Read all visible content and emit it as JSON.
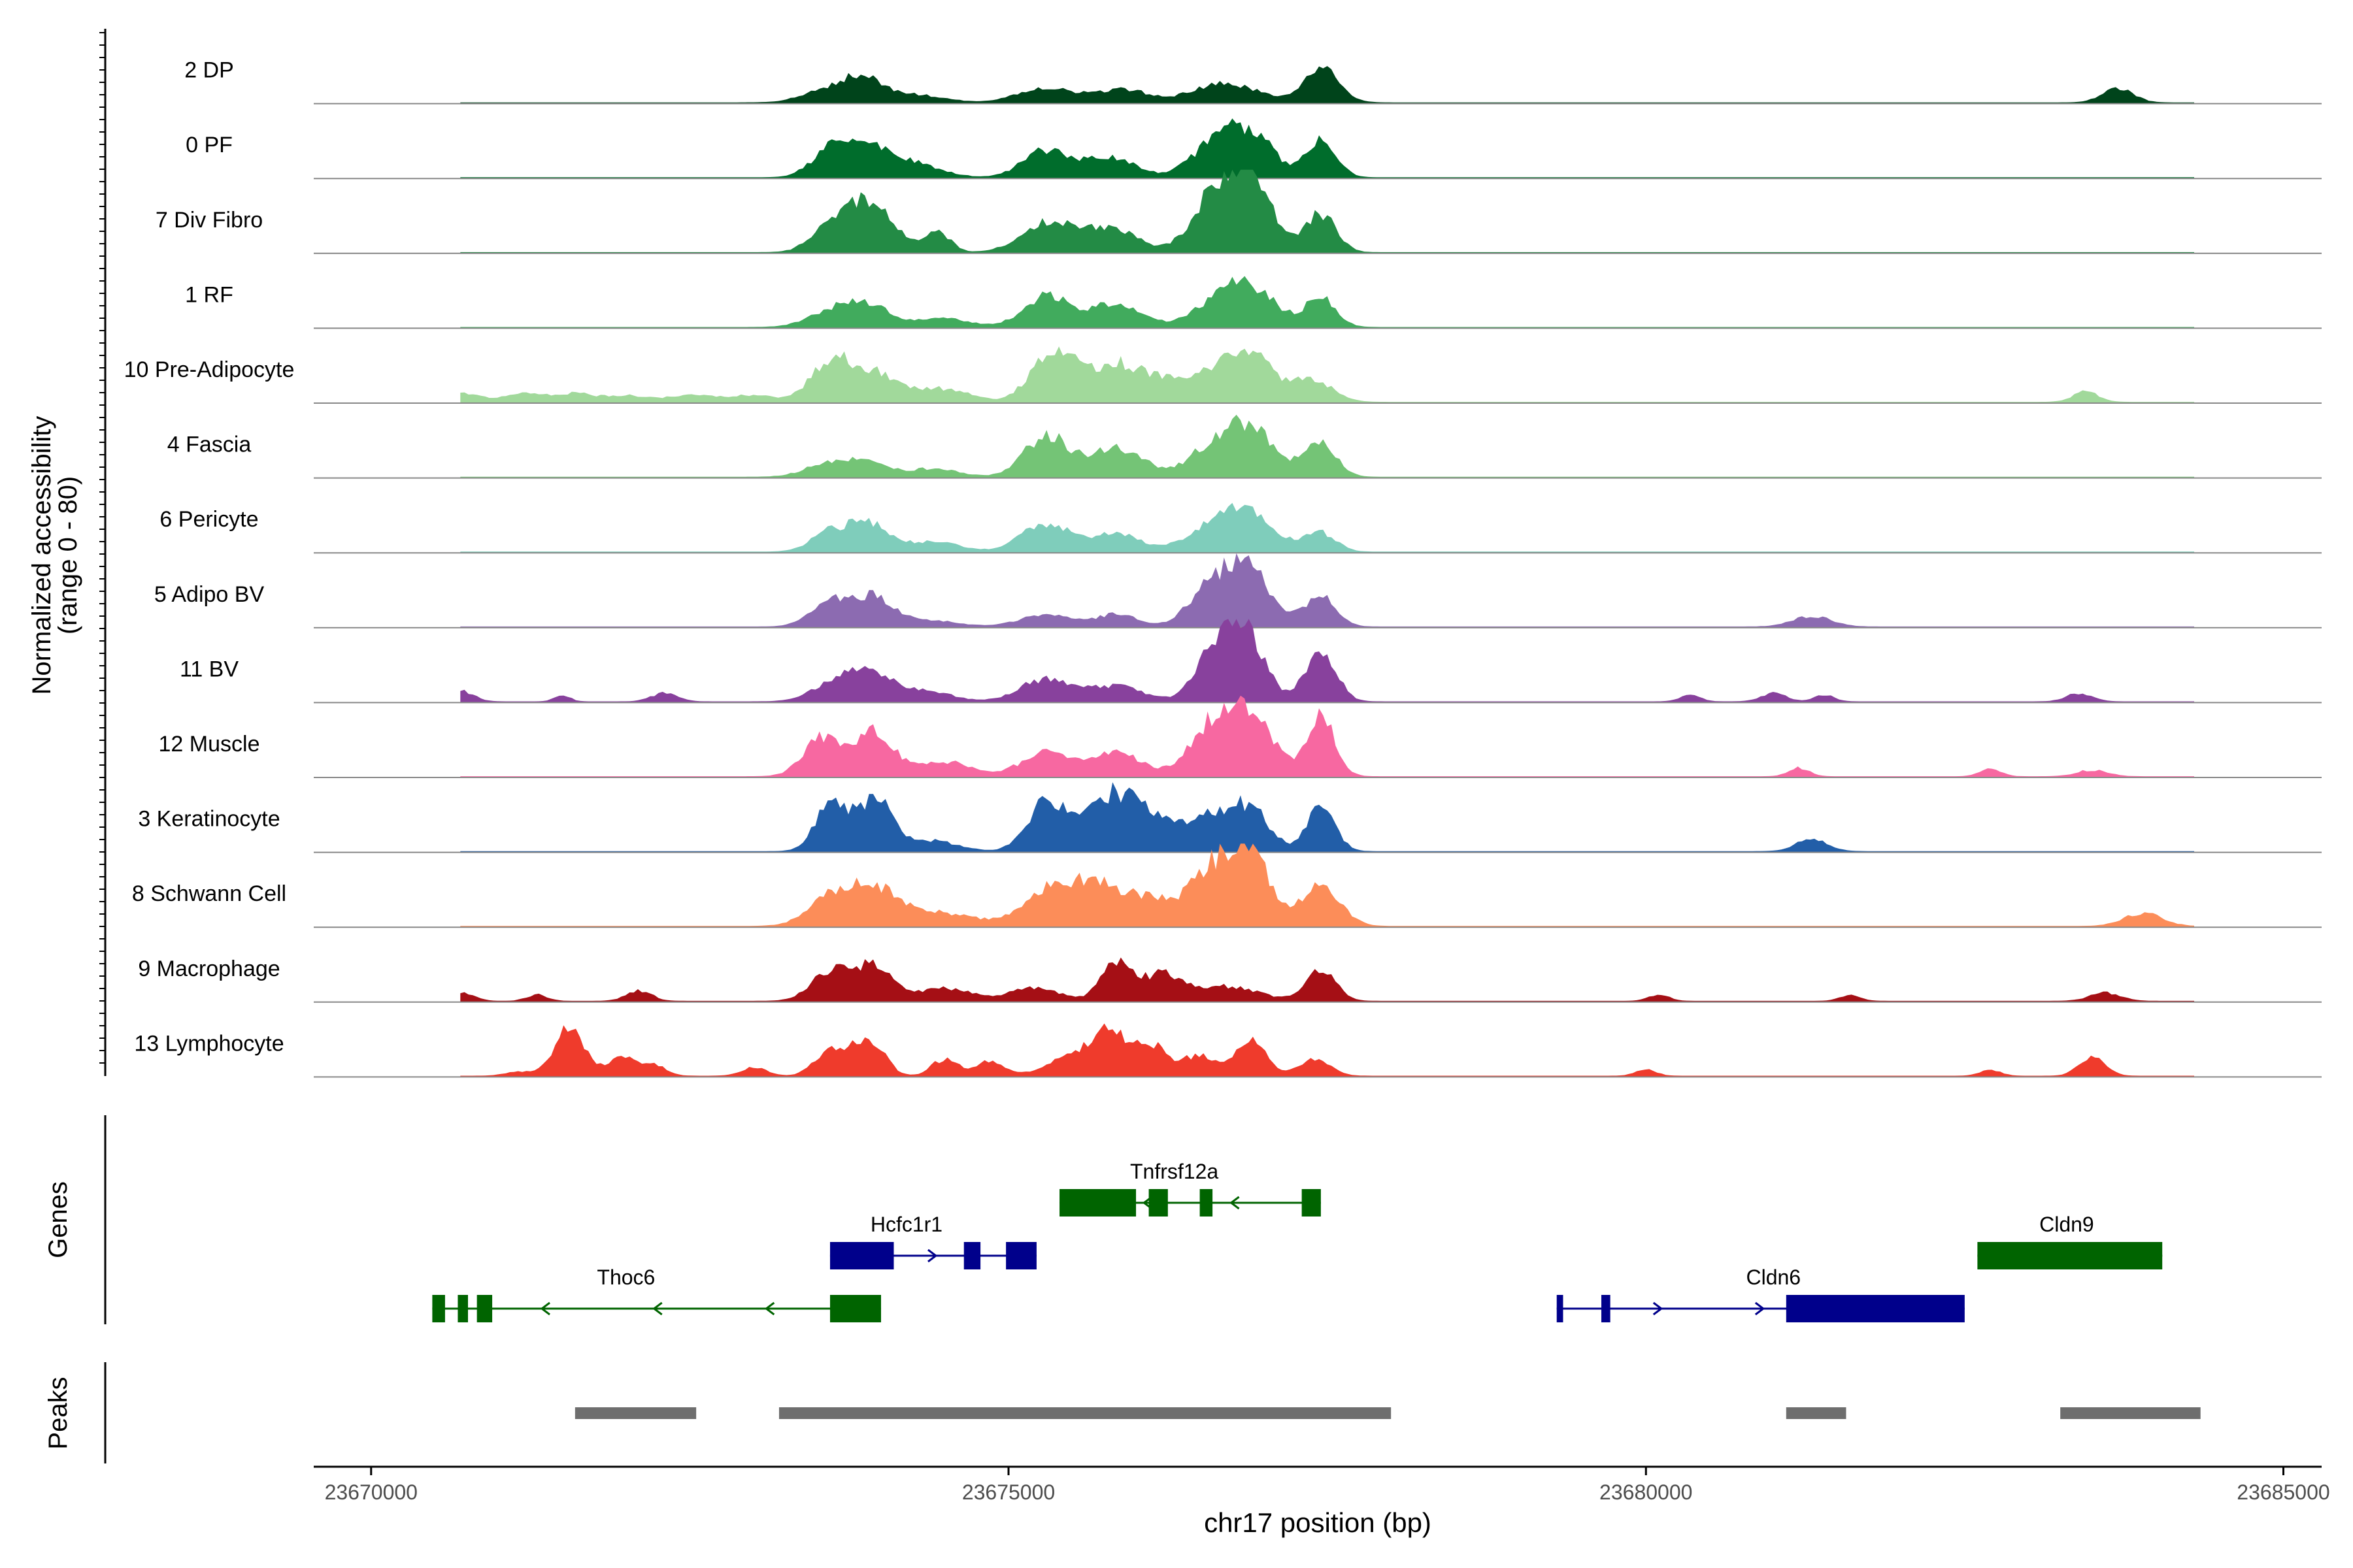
{
  "chart_data": {
    "type": "area",
    "chromosome": "chr17",
    "xlabel": "chr17 position (bp)",
    "ylabel_line1": "Normalized accessibility",
    "ylabel_line2": "(range 0 - 80)",
    "ylim": [
      0,
      80
    ],
    "xlim": [
      23669550,
      23685300
    ],
    "x_ticks": [
      23670000,
      23675000,
      23680000,
      23685000
    ],
    "x_tick_labels": [
      "23670000",
      "23675000",
      "23680000",
      "23685000"
    ],
    "track_x_range": [
      23670700,
      23684300
    ],
    "series": [
      {
        "name": "2 DP",
        "color": "#00441b",
        "peaks": [
          [
            23673600,
            12,
            200
          ],
          [
            23673850,
            18,
            150
          ],
          [
            23674200,
            8,
            250
          ],
          [
            23675300,
            14,
            220
          ],
          [
            23675900,
            12,
            200
          ],
          [
            23676700,
            18,
            250
          ],
          [
            23677450,
            32,
            140
          ],
          [
            23683700,
            14,
            120
          ]
        ]
      },
      {
        "name": "0 PF",
        "color": "#006d2c",
        "peaks": [
          [
            23673600,
            22,
            150
          ],
          [
            23673900,
            28,
            200
          ],
          [
            23674300,
            10,
            200
          ],
          [
            23675300,
            26,
            180
          ],
          [
            23675800,
            18,
            200
          ],
          [
            23676600,
            28,
            180
          ],
          [
            23676900,
            40,
            180
          ],
          [
            23677450,
            36,
            120
          ]
        ]
      },
      {
        "name": "7 Div Fibro",
        "color": "#238b45",
        "peaks": [
          [
            23673600,
            20,
            150
          ],
          [
            23673900,
            45,
            200
          ],
          [
            23674450,
            18,
            100
          ],
          [
            23675300,
            28,
            200
          ],
          [
            23675800,
            24,
            200
          ],
          [
            23676600,
            50,
            170
          ],
          [
            23676900,
            70,
            170
          ],
          [
            23677450,
            36,
            120
          ]
        ]
      },
      {
        "name": "1 RF",
        "color": "#41ab5d",
        "peaks": [
          [
            23673600,
            14,
            180
          ],
          [
            23673900,
            20,
            180
          ],
          [
            23674500,
            8,
            200
          ],
          [
            23675300,
            30,
            180
          ],
          [
            23675850,
            24,
            180
          ],
          [
            23676600,
            18,
            200
          ],
          [
            23676900,
            36,
            200
          ],
          [
            23677450,
            28,
            120
          ]
        ]
      },
      {
        "name": "10 Pre-Adipocyte",
        "color": "#a1d99b",
        "peaks": [
          [
            23670700,
            8,
            150
          ],
          [
            23671200,
            8,
            150
          ],
          [
            23671600,
            8,
            150
          ],
          [
            23672000,
            6,
            150
          ],
          [
            23672500,
            6,
            200
          ],
          [
            23673000,
            6,
            200
          ],
          [
            23673600,
            36,
            150
          ],
          [
            23673950,
            28,
            200
          ],
          [
            23674500,
            12,
            200
          ],
          [
            23675350,
            50,
            170
          ],
          [
            23675850,
            36,
            200
          ],
          [
            23676200,
            14,
            150
          ],
          [
            23676600,
            22,
            200
          ],
          [
            23676900,
            40,
            200
          ],
          [
            23677400,
            20,
            150
          ],
          [
            23683450,
            10,
            100
          ]
        ]
      },
      {
        "name": "4 Fascia",
        "color": "#74c476",
        "peaks": [
          [
            23673600,
            14,
            180
          ],
          [
            23673900,
            12,
            150
          ],
          [
            23674400,
            8,
            200
          ],
          [
            23675300,
            40,
            170
          ],
          [
            23675850,
            28,
            200
          ],
          [
            23676600,
            24,
            200
          ],
          [
            23676900,
            42,
            200
          ],
          [
            23677450,
            34,
            120
          ]
        ]
      },
      {
        "name": "6 Pericyte",
        "color": "#7fcdbb",
        "peaks": [
          [
            23673600,
            18,
            150
          ],
          [
            23673900,
            26,
            150
          ],
          [
            23674400,
            10,
            200
          ],
          [
            23675300,
            26,
            200
          ],
          [
            23675850,
            16,
            200
          ],
          [
            23676600,
            22,
            200
          ],
          [
            23676900,
            34,
            200
          ],
          [
            23677450,
            18,
            120
          ]
        ]
      },
      {
        "name": "5 Adipo BV",
        "color": "#8c6bb1",
        "peaks": [
          [
            23673600,
            24,
            150
          ],
          [
            23673950,
            28,
            150
          ],
          [
            23674400,
            6,
            200
          ],
          [
            23675300,
            12,
            200
          ],
          [
            23675850,
            12,
            150
          ],
          [
            23676600,
            36,
            180
          ],
          [
            23676900,
            48,
            180
          ],
          [
            23677450,
            28,
            120
          ],
          [
            23681300,
            10,
            150
          ]
        ]
      },
      {
        "name": "11 BV",
        "color": "#88419d",
        "peaks": [
          [
            23670700,
            10,
            100
          ],
          [
            23671500,
            6,
            60
          ],
          [
            23672300,
            8,
            100
          ],
          [
            23673650,
            20,
            180
          ],
          [
            23673950,
            24,
            150
          ],
          [
            23674350,
            10,
            200
          ],
          [
            23675300,
            22,
            200
          ],
          [
            23675850,
            14,
            200
          ],
          [
            23676600,
            40,
            150
          ],
          [
            23676850,
            68,
            150
          ],
          [
            23677450,
            48,
            120
          ],
          [
            23680350,
            6,
            80
          ],
          [
            23681000,
            8,
            100
          ],
          [
            23681400,
            6,
            80
          ],
          [
            23683400,
            8,
            100
          ]
        ]
      },
      {
        "name": "12 Muscle",
        "color": "#f768a1",
        "peaks": [
          [
            23673550,
            38,
            150
          ],
          [
            23673950,
            42,
            150
          ],
          [
            23674500,
            14,
            200
          ],
          [
            23675300,
            22,
            200
          ],
          [
            23675850,
            22,
            200
          ],
          [
            23676600,
            44,
            180
          ],
          [
            23676900,
            56,
            180
          ],
          [
            23677450,
            58,
            110
          ],
          [
            23681200,
            8,
            80
          ],
          [
            23682700,
            8,
            80
          ],
          [
            23683500,
            6,
            120
          ]
        ]
      },
      {
        "name": "3 Keratinocyte",
        "color": "#225ea8",
        "peaks": [
          [
            23673600,
            46,
            120
          ],
          [
            23673950,
            50,
            140
          ],
          [
            23674400,
            10,
            200
          ],
          [
            23675300,
            48,
            150
          ],
          [
            23675800,
            52,
            200
          ],
          [
            23676150,
            24,
            180
          ],
          [
            23676600,
            32,
            180
          ],
          [
            23676900,
            36,
            150
          ],
          [
            23677450,
            42,
            110
          ],
          [
            23681300,
            12,
            120
          ]
        ]
      },
      {
        "name": "8 Schwann Cell",
        "color": "#fc8d59",
        "peaks": [
          [
            23673600,
            24,
            180
          ],
          [
            23673950,
            36,
            200
          ],
          [
            23674500,
            12,
            250
          ],
          [
            23675300,
            32,
            200
          ],
          [
            23675700,
            38,
            200
          ],
          [
            23676150,
            24,
            200
          ],
          [
            23676600,
            50,
            170
          ],
          [
            23676900,
            64,
            160
          ],
          [
            23677450,
            40,
            150
          ],
          [
            23683900,
            12,
            150
          ]
        ]
      },
      {
        "name": "9 Macrophage",
        "color": "#a50f15",
        "peaks": [
          [
            23670700,
            8,
            100
          ],
          [
            23671300,
            6,
            80
          ],
          [
            23672100,
            10,
            100
          ],
          [
            23673600,
            28,
            150
          ],
          [
            23673950,
            34,
            150
          ],
          [
            23674500,
            12,
            200
          ],
          [
            23675200,
            12,
            200
          ],
          [
            23675850,
            36,
            120
          ],
          [
            23676200,
            24,
            150
          ],
          [
            23676700,
            14,
            250
          ],
          [
            23677450,
            30,
            120
          ],
          [
            23680100,
            6,
            80
          ],
          [
            23681600,
            6,
            80
          ],
          [
            23683600,
            8,
            120
          ]
        ]
      },
      {
        "name": "13 Lymphocyte",
        "color": "#ef3b2c",
        "peaks": [
          [
            23671150,
            4,
            100
          ],
          [
            23671550,
            44,
            120
          ],
          [
            23671950,
            18,
            100
          ],
          [
            23672200,
            12,
            100
          ],
          [
            23673000,
            8,
            100
          ],
          [
            23673600,
            24,
            120
          ],
          [
            23673900,
            36,
            120
          ],
          [
            23674500,
            16,
            100
          ],
          [
            23674850,
            14,
            120
          ],
          [
            23675400,
            14,
            150
          ],
          [
            23675750,
            40,
            150
          ],
          [
            23676100,
            30,
            150
          ],
          [
            23676500,
            18,
            120
          ],
          [
            23676900,
            32,
            120
          ],
          [
            23677400,
            16,
            120
          ],
          [
            23680000,
            6,
            80
          ],
          [
            23682700,
            6,
            80
          ],
          [
            23683500,
            18,
            100
          ]
        ]
      }
    ],
    "genes": [
      {
        "name": "Thoc6",
        "strand": "-",
        "color": "#006400",
        "row": 0,
        "start": 23670480,
        "end": 23674000,
        "exons": [
          [
            23670480,
            23670580
          ],
          [
            23670680,
            23670760
          ],
          [
            23670830,
            23670950
          ],
          [
            23673600,
            23674000
          ]
        ],
        "label_x": 23672000
      },
      {
        "name": "Hcfc1r1",
        "strand": "+",
        "color": "#00008b",
        "row": 1,
        "start": 23673600,
        "end": 23675220,
        "exons": [
          [
            23673600,
            23674100
          ],
          [
            23674650,
            23674780
          ],
          [
            23674980,
            23675220
          ]
        ],
        "label_x": 23674200
      },
      {
        "name": "Tnfrsf12a",
        "strand": "-",
        "color": "#006400",
        "row": 2,
        "start": 23675400,
        "end": 23677450,
        "exons": [
          [
            23675400,
            23676000
          ],
          [
            23676100,
            23676250
          ],
          [
            23676500,
            23676600
          ],
          [
            23677300,
            23677450
          ]
        ],
        "label_x": 23676300
      },
      {
        "name": "Cldn6",
        "strand": "+",
        "color": "#00008b",
        "row": 0,
        "start": 23679300,
        "end": 23682500,
        "exons": [
          [
            23679300,
            23679350
          ],
          [
            23679650,
            23679720
          ],
          [
            23681100,
            23682500
          ]
        ],
        "label_x": 23681000
      },
      {
        "name": "Cldn9",
        "strand": "-",
        "color": "#006400",
        "row": 1,
        "start": 23682600,
        "end": 23684050,
        "exons": [
          [
            23682600,
            23684050
          ]
        ],
        "label_x": 23683300
      }
    ],
    "peak_regions": [
      [
        23671600,
        23672550
      ],
      [
        23673200,
        23678000
      ],
      [
        23681100,
        23681570
      ],
      [
        23683250,
        23684350
      ]
    ],
    "panel_labels": {
      "genes": "Genes",
      "peaks": "Peaks"
    },
    "colors": {
      "baseline": "#888888",
      "peak_region": "#6e6e6e",
      "axis": "#000000",
      "tick_label": "#4d4d4d"
    }
  }
}
